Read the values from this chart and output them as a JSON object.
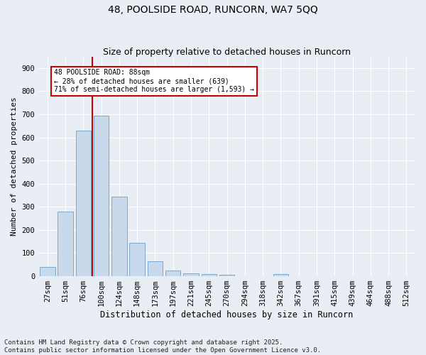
{
  "title": "48, POOLSIDE ROAD, RUNCORN, WA7 5QQ",
  "subtitle": "Size of property relative to detached houses in Runcorn",
  "xlabel": "Distribution of detached houses by size in Runcorn",
  "ylabel": "Number of detached properties",
  "categories": [
    "27sqm",
    "51sqm",
    "76sqm",
    "100sqm",
    "124sqm",
    "148sqm",
    "173sqm",
    "197sqm",
    "221sqm",
    "245sqm",
    "270sqm",
    "294sqm",
    "318sqm",
    "342sqm",
    "367sqm",
    "391sqm",
    "415sqm",
    "439sqm",
    "464sqm",
    "488sqm",
    "512sqm"
  ],
  "bar_heights": [
    40,
    280,
    630,
    695,
    345,
    145,
    65,
    25,
    12,
    10,
    5,
    0,
    0,
    10,
    0,
    0,
    0,
    0,
    0,
    0,
    0
  ],
  "bar_color": "#c9d9ec",
  "bar_edge_color": "#7aaaca",
  "background_color": "#e8eef4",
  "grid_color": "#ffffff",
  "vline_x_index": 2.5,
  "annotation_box_text": "48 POOLSIDE ROAD: 88sqm\n← 28% of detached houses are smaller (639)\n71% of semi-detached houses are larger (1,593) →",
  "annotation_box_facecolor": "#ffffff",
  "annotation_box_edgecolor": "#cc0000",
  "vline_color": "#cc0000",
  "ylim": [
    0,
    950
  ],
  "yticks": [
    0,
    100,
    200,
    300,
    400,
    500,
    600,
    700,
    800,
    900
  ],
  "footer_text": "Contains HM Land Registry data © Crown copyright and database right 2025.\nContains public sector information licensed under the Open Government Licence v3.0.",
  "title_fontsize": 10,
  "subtitle_fontsize": 9,
  "xlabel_fontsize": 8.5,
  "ylabel_fontsize": 8,
  "tick_fontsize": 7.5,
  "annot_fontsize": 7,
  "footer_fontsize": 6.5
}
